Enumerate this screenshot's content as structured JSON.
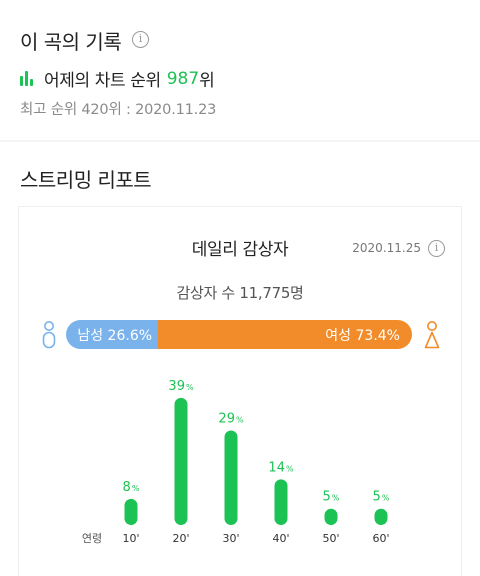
{
  "record": {
    "title": "이 곡의 기록",
    "info_icon": "i",
    "rank_label": "어제의 차트 순위",
    "rank_value": "987",
    "rank_unit": "위",
    "best_rank": "최고 순위 420위 : 2020.11.23"
  },
  "streaming": {
    "section_title": "스트리밍 리포트",
    "card": {
      "title": "데일리 감상자",
      "date": "2020.11.25",
      "info_icon": "i",
      "listener_count": "감상자 수 11,775명"
    },
    "gender": {
      "male_label": "남성 26.6%",
      "female_label": "여성 73.4%",
      "male_share": 26.6,
      "female_share": 73.4,
      "male_color": "#7ab3ec",
      "female_color": "#f28c2b"
    }
  },
  "colors": {
    "accent_green": "#1dc254"
  },
  "chart_data": {
    "type": "bar",
    "xlabel": "연령",
    "categories": [
      "10'",
      "20'",
      "30'",
      "40'",
      "50'",
      "60'"
    ],
    "values": [
      8,
      39,
      29,
      14,
      5,
      5
    ],
    "unit": "%",
    "color": "#1dc254"
  }
}
